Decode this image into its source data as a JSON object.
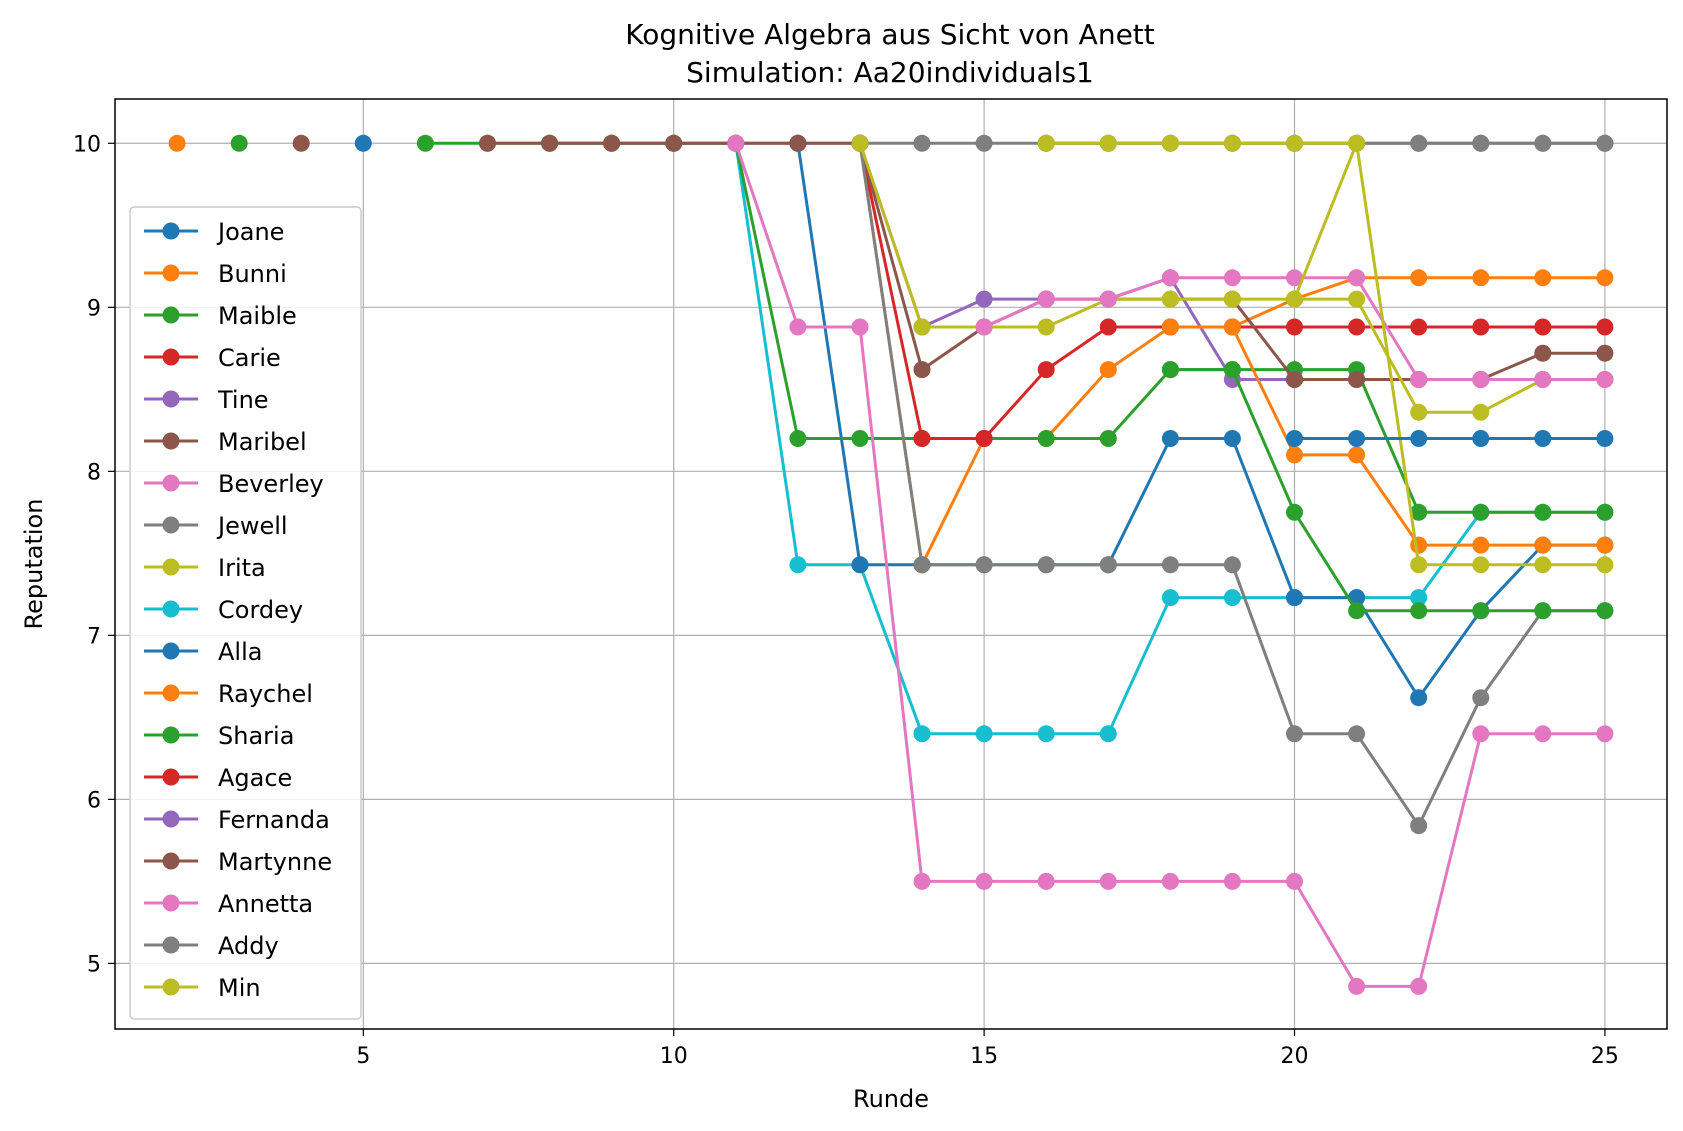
{
  "chart_data": {
    "type": "line",
    "title": "Kognitive Algebra aus Sicht von Anett",
    "subtitle": "Simulation: Aa20individuals1",
    "xlabel": "Runde",
    "ylabel": "Reputation",
    "xlim": [
      1,
      26
    ],
    "ylim": [
      4.6,
      10.27
    ],
    "xticks": [
      5,
      10,
      15,
      20,
      25
    ],
    "yticks": [
      5,
      6,
      7,
      8,
      9,
      10
    ],
    "grid": true,
    "legend_position": "center-left",
    "series": [
      {
        "name": "Joane",
        "color": "#1f77b4",
        "x": [
          5
        ],
        "y": [
          10
        ]
      },
      {
        "name": "Bunni",
        "color": "#ff7f0e",
        "x": [
          2
        ],
        "y": [
          10
        ]
      },
      {
        "name": "Maible",
        "color": "#2ca02c",
        "x": [
          3
        ],
        "y": [
          10
        ]
      },
      {
        "name": "Carie",
        "color": "#d62728",
        "x": [],
        "y": []
      },
      {
        "name": "Tine",
        "color": "#9467bd",
        "x": [
          16,
          17,
          18,
          19,
          20,
          21,
          22,
          23,
          24,
          25
        ],
        "y": [
          10,
          10,
          10,
          10,
          10,
          10,
          10,
          10,
          10,
          10
        ]
      },
      {
        "name": "Maribel",
        "color": "#8c564b",
        "x": [
          4
        ],
        "y": [
          10
        ]
      },
      {
        "name": "Beverley",
        "color": "#e377c2",
        "x": [],
        "y": []
      },
      {
        "name": "Jewell",
        "color": "#7f7f7f",
        "x": [
          8,
          9,
          10,
          11,
          12,
          13,
          14,
          15,
          16,
          17,
          18,
          19,
          20,
          21,
          22,
          23,
          24,
          25
        ],
        "y": [
          10,
          10,
          10,
          10,
          10,
          10,
          10,
          10,
          10,
          10,
          10,
          10,
          10,
          10,
          10,
          10,
          10,
          10
        ]
      },
      {
        "name": "Irita",
        "color": "#bcbd22",
        "x": [
          16,
          17,
          18,
          19,
          20,
          21
        ],
        "y": [
          10,
          10,
          10,
          10,
          10,
          10
        ]
      },
      {
        "name": "Cordey",
        "color": "#17becf",
        "x": [
          11,
          12,
          13,
          14,
          15,
          16,
          17,
          18,
          19,
          20,
          21,
          22,
          23,
          24,
          25
        ],
        "y": [
          10,
          7.43,
          7.43,
          6.4,
          6.4,
          6.4,
          6.4,
          7.23,
          7.23,
          7.23,
          7.23,
          7.23,
          7.75,
          7.75,
          7.75
        ]
      },
      {
        "name": "Alla",
        "color": "#1f77b4",
        "x": [
          12,
          13,
          14,
          15,
          16,
          17,
          18,
          19,
          20,
          21,
          22,
          23,
          24,
          25
        ],
        "y": [
          10,
          7.43,
          7.43,
          7.43,
          7.43,
          7.43,
          8.2,
          8.2,
          7.23,
          7.23,
          6.62,
          7.15,
          7.55,
          7.55
        ]
      },
      {
        "name": "Raychel",
        "color": "#ff7f0e",
        "x": [
          13,
          14,
          15,
          16,
          17,
          18,
          19,
          20,
          21,
          22,
          23,
          24,
          25
        ],
        "y": [
          10,
          7.43,
          8.2,
          8.2,
          8.62,
          8.88,
          8.88,
          9.05,
          9.18,
          9.18,
          9.18,
          9.18,
          9.18
        ]
      },
      {
        "name": "Sharia",
        "color": "#2ca02c",
        "x": [
          6,
          7,
          8,
          9,
          10,
          11,
          12,
          13,
          14,
          15,
          16,
          17,
          18,
          19,
          20,
          21,
          22,
          23,
          24,
          25
        ],
        "y": [
          10,
          10,
          10,
          10,
          10,
          10,
          8.2,
          8.2,
          8.2,
          8.2,
          8.2,
          8.2,
          8.62,
          8.62,
          8.62,
          8.62,
          7.75,
          7.75,
          7.75,
          7.75
        ]
      },
      {
        "name": "Agace",
        "color": "#d62728",
        "x": [
          13,
          14,
          15,
          16,
          17,
          18,
          19,
          20,
          21,
          22,
          23,
          24,
          25
        ],
        "y": [
          10,
          8.2,
          8.2,
          8.62,
          8.88,
          8.88,
          8.88,
          8.88,
          8.88,
          8.88,
          8.88,
          8.88,
          8.88
        ]
      },
      {
        "name": "Fernanda",
        "color": "#9467bd",
        "x": [
          13,
          14,
          15,
          16,
          17,
          18,
          19,
          20,
          21,
          22,
          23,
          24,
          25
        ],
        "y": [
          10,
          8.88,
          9.05,
          9.05,
          9.05,
          9.18,
          8.56,
          8.56,
          8.56,
          8.56,
          8.56,
          8.56,
          8.56
        ]
      },
      {
        "name": "Martynne",
        "color": "#8c564b",
        "x": [
          7,
          8,
          9,
          10,
          11,
          12,
          13,
          14,
          15,
          16,
          17,
          18,
          19,
          20,
          21,
          22,
          23,
          24,
          25
        ],
        "y": [
          10,
          10,
          10,
          10,
          10,
          10,
          10,
          8.62,
          8.88,
          9.05,
          9.05,
          9.05,
          9.05,
          8.56,
          8.56,
          8.56,
          8.56,
          8.72,
          8.72
        ]
      },
      {
        "name": "Annetta",
        "color": "#e377c2",
        "x": [
          11,
          12,
          13,
          14,
          15,
          16,
          17,
          18,
          19,
          20,
          21,
          22,
          23,
          24,
          25
        ],
        "y": [
          10,
          8.88,
          8.88,
          5.5,
          5.5,
          5.5,
          5.5,
          5.5,
          5.5,
          5.5,
          4.86,
          4.86,
          6.4,
          6.4,
          6.4
        ]
      },
      {
        "name": "Addy",
        "color": "#7f7f7f",
        "x": [
          13,
          14,
          15,
          16,
          17,
          18,
          19,
          20,
          21,
          22,
          23,
          24,
          25
        ],
        "y": [
          10,
          7.43,
          7.43,
          7.43,
          7.43,
          7.43,
          7.43,
          6.4,
          6.4,
          5.84,
          6.62,
          7.15,
          7.15
        ]
      },
      {
        "name": "Min",
        "color": "#bcbd22",
        "x": [
          13,
          14,
          15,
          16,
          17,
          18,
          19,
          20,
          21,
          22,
          23,
          24,
          25
        ],
        "y": [
          10,
          8.88,
          8.88,
          8.88,
          9.05,
          9.05,
          9.05,
          9.05,
          9.05,
          8.36,
          8.36,
          8.56,
          8.56
        ]
      },
      {
        "name": "",
        "color": "#2ca02c",
        "x": [
          18,
          19,
          20,
          21,
          22,
          23,
          24,
          25
        ],
        "y": [
          8.62,
          8.62,
          7.75,
          7.15,
          7.15,
          7.15,
          7.15,
          7.15
        ]
      },
      {
        "name": "",
        "color": "#ff7f0e",
        "x": [
          18,
          19,
          20,
          21,
          22,
          23,
          24,
          25
        ],
        "y": [
          8.88,
          8.88,
          8.1,
          8.1,
          7.55,
          7.55,
          7.55,
          7.55
        ]
      },
      {
        "name": "",
        "color": "#e377c2",
        "x": [
          15,
          16,
          17,
          18,
          19,
          20,
          21,
          22,
          23,
          24,
          25
        ],
        "y": [
          8.88,
          9.05,
          9.05,
          9.18,
          9.18,
          9.18,
          9.18,
          8.56,
          8.56,
          8.56,
          8.56
        ]
      },
      {
        "name": "",
        "color": "#bcbd22",
        "x": [
          20,
          21,
          22,
          23,
          24,
          25
        ],
        "y": [
          9.05,
          10,
          7.43,
          7.43,
          7.43,
          7.43
        ]
      },
      {
        "name": "",
        "color": "#1f77b4",
        "x": [
          20,
          21,
          22,
          23,
          24,
          25
        ],
        "y": [
          8.2,
          8.2,
          8.2,
          8.2,
          8.2,
          8.2
        ]
      }
    ]
  }
}
